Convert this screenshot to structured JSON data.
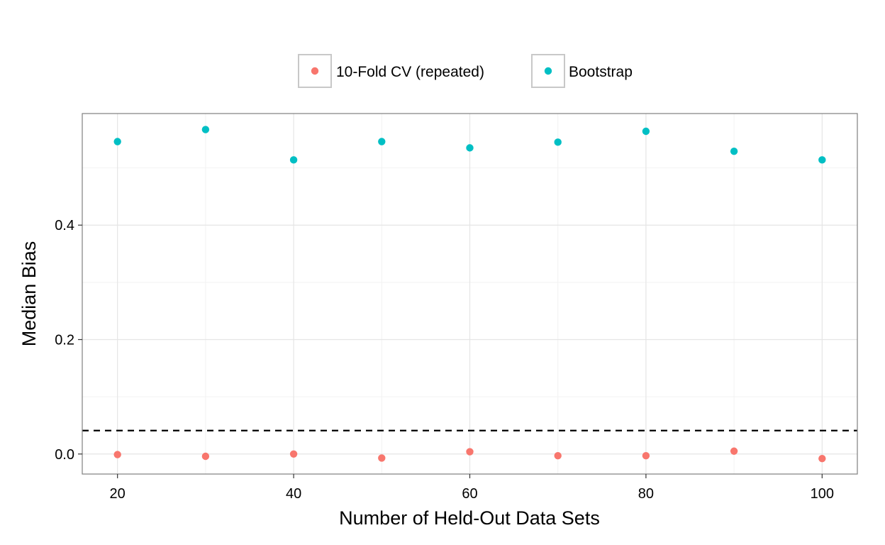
{
  "chart_data": {
    "type": "scatter",
    "title": "",
    "xlabel": "Number of Held-Out Data Sets",
    "ylabel": "Median Bias",
    "xlim": [
      16,
      104
    ],
    "ylim": [
      -0.035,
      0.595
    ],
    "x_ticks": [
      20,
      40,
      60,
      80,
      100
    ],
    "y_ticks": [
      0.0,
      0.2,
      0.4
    ],
    "x_tick_labels": [
      "20",
      "40",
      "60",
      "80",
      "100"
    ],
    "y_tick_labels": [
      "0.0",
      "0.2",
      "0.4"
    ],
    "grid": true,
    "legend_position": "top",
    "reference_line": {
      "y": 0.041,
      "style": "dashed",
      "color": "#000000"
    },
    "x": [
      20,
      30,
      40,
      50,
      60,
      70,
      80,
      90,
      100
    ],
    "series": [
      {
        "name": "10-Fold CV (repeated)",
        "color": "#F8766D",
        "values": [
          -0.001,
          -0.004,
          0.0,
          -0.007,
          0.004,
          -0.003,
          -0.003,
          0.005,
          -0.008
        ]
      },
      {
        "name": "Bootstrap",
        "color": "#00BFC4",
        "values": [
          0.546,
          0.567,
          0.514,
          0.546,
          0.535,
          0.545,
          0.564,
          0.529,
          0.514
        ]
      }
    ]
  }
}
